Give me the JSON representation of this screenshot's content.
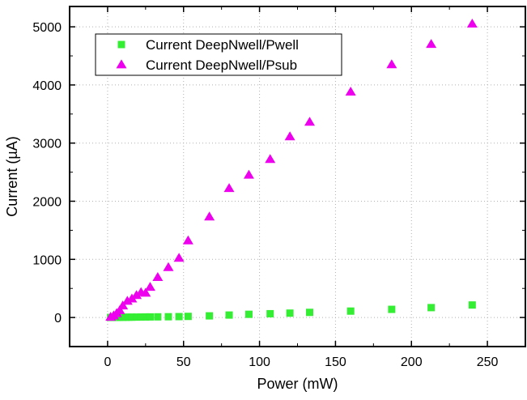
{
  "chart_data": {
    "type": "scatter",
    "xlabel": "Power (mW)",
    "ylabel": "Current (µA)",
    "xlim": [
      -25,
      275
    ],
    "ylim": [
      -500,
      5350
    ],
    "x_ticks": [
      0,
      50,
      100,
      150,
      200,
      250
    ],
    "y_ticks": [
      0,
      1000,
      2000,
      3000,
      4000,
      5000
    ],
    "grid": true,
    "legend_position": "top-left",
    "series": [
      {
        "name": "Current DeepNwell/Pwell",
        "marker": "square",
        "color": "#33ee33",
        "x": [
          2,
          3,
          4,
          5,
          6,
          7,
          8,
          10,
          12,
          14,
          16,
          19,
          22,
          25,
          28,
          33,
          40,
          47,
          53,
          67,
          80,
          93,
          107,
          120,
          133,
          160,
          187,
          213,
          240
        ],
        "y": [
          1,
          1,
          2,
          2,
          3,
          3,
          4,
          4,
          5,
          5,
          6,
          7,
          8,
          9,
          10,
          11,
          13,
          15,
          19,
          28,
          42,
          55,
          65,
          75,
          88,
          110,
          140,
          170,
          215
        ]
      },
      {
        "name": "Current DeepNwell/Psub",
        "marker": "triangle",
        "color": "#ee00ee",
        "x": [
          2,
          4,
          6,
          8,
          10,
          13,
          16,
          19,
          22,
          25,
          28,
          33,
          40,
          47,
          53,
          67,
          80,
          93,
          107,
          120,
          133,
          160,
          187,
          213,
          240
        ],
        "y": [
          5,
          30,
          70,
          120,
          200,
          280,
          320,
          380,
          430,
          420,
          520,
          690,
          860,
          1020,
          1320,
          1730,
          2220,
          2450,
          2720,
          3110,
          3360,
          3880,
          4350,
          4700,
          5050
        ]
      }
    ]
  }
}
